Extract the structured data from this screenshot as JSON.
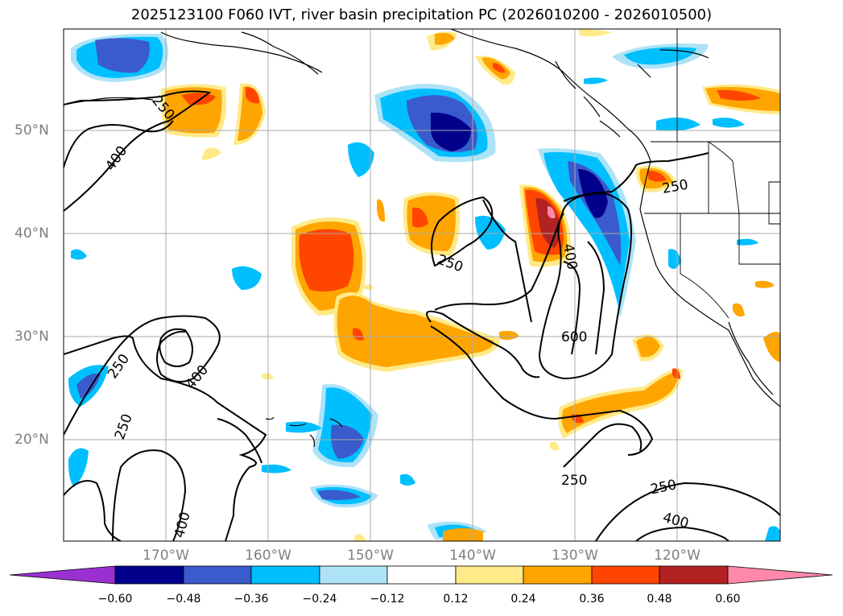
{
  "title": "2025123100 F060 IVT, river basin precipitation PC (2026010200 - 2026010500)",
  "map": {
    "lat_labels": [
      "50°N",
      "40°N",
      "30°N",
      "20°N"
    ],
    "lon_labels": [
      "170°W",
      "160°W",
      "150°W",
      "140°W",
      "130°W",
      "120°W"
    ],
    "gridline_color": "#aaaaaa",
    "coast_color": "#000000"
  },
  "contour_labels": {
    "c1": "250",
    "c2": "400",
    "c3": "250",
    "c4": "400",
    "c5": "600",
    "c6": "250",
    "c7": "400",
    "c8": "250",
    "c9": "250",
    "c10": "400",
    "c11": "250",
    "c12": "400",
    "c13": "250"
  },
  "colorbar": {
    "tick_labels": [
      "−0.60",
      "−0.48",
      "−0.36",
      "−0.24",
      "−0.12",
      "0.12",
      "0.24",
      "0.36",
      "0.48",
      "0.60"
    ],
    "colors": [
      "#9b30d0",
      "#00008b",
      "#3a5bcc",
      "#00bfff",
      "#aee3f7",
      "#ffffff",
      "#ffea8a",
      "#ffa500",
      "#ff4500",
      "#b22222",
      "#ff88aa"
    ]
  }
}
